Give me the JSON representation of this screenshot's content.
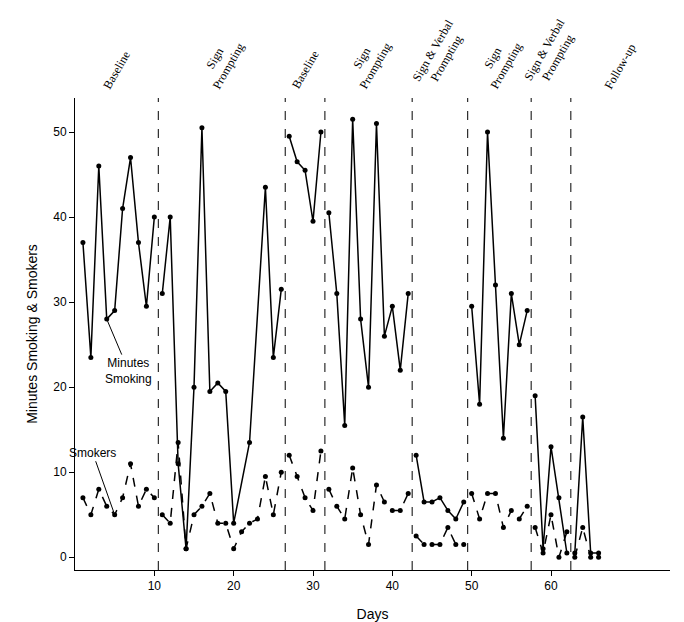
{
  "chart_data": {
    "type": "line",
    "xlabel": "Days",
    "ylabel": "Minutes Smoking & Smokers",
    "xlim": [
      0,
      75
    ],
    "xticks": [
      10,
      20,
      30,
      40,
      50,
      60
    ],
    "ylim": [
      -1.5,
      54
    ],
    "yticks": [
      0,
      10,
      20,
      30,
      40,
      50
    ],
    "grid": false,
    "phase_lines": [
      10.5,
      26.5,
      31.5,
      42.5,
      49.5,
      57.5,
      62.5
    ],
    "phases": [
      {
        "label": [
          "Baseline"
        ]
      },
      {
        "label": [
          "Sign",
          "Prompting"
        ]
      },
      {
        "label": [
          "Baseline"
        ]
      },
      {
        "label": [
          "Sign",
          "Prompting"
        ]
      },
      {
        "label": [
          "Sign & Verbal",
          "Prompting"
        ]
      },
      {
        "label": [
          "Sign",
          "Prompting"
        ]
      },
      {
        "label": [
          "Sign & Verbal",
          "Prompting"
        ]
      },
      {
        "label": [
          "Follow-up"
        ]
      }
    ],
    "series": [
      {
        "name": "Minutes Smoking",
        "color": "#000000",
        "line_style": "solid",
        "marker": "circle",
        "x": [
          1,
          2,
          3,
          4,
          5,
          6,
          7,
          8,
          9,
          10,
          10.5,
          11,
          12,
          13,
          14,
          15,
          16,
          17,
          18,
          19,
          20,
          22,
          24,
          25,
          26,
          26.5,
          27,
          28,
          29,
          30,
          31,
          31.5,
          32,
          33,
          34,
          35,
          36,
          37,
          38,
          39,
          40,
          41,
          42,
          42.5,
          43,
          44,
          45,
          46,
          47,
          48,
          49,
          49.5,
          50,
          51,
          52,
          53,
          54,
          55,
          56,
          57,
          57.5,
          58,
          59,
          60,
          61,
          62,
          62.5,
          63,
          64,
          65,
          66
        ],
        "values": [
          37,
          23.5,
          46,
          28,
          29,
          41,
          47,
          37,
          29.5,
          40,
          null,
          31,
          40,
          11,
          1,
          20,
          50.5,
          19.5,
          20.5,
          19.5,
          4,
          13.5,
          43.5,
          23.5,
          31.5,
          null,
          49.5,
          46.5,
          45.5,
          39.5,
          50,
          null,
          40.5,
          31,
          15.5,
          51.5,
          28,
          20,
          51,
          26,
          29.5,
          22,
          31,
          null,
          12,
          6.5,
          6.5,
          7,
          5.5,
          4.5,
          6.5,
          null,
          29.5,
          18,
          50,
          32,
          14,
          31,
          25,
          29,
          null,
          19,
          1,
          13,
          7,
          0.5,
          null,
          0.5,
          16.5,
          0.5,
          0.5
        ]
      },
      {
        "name": "Smokers",
        "color": "#000000",
        "line_style": "dash",
        "marker": "circle",
        "x": [
          1,
          2,
          3,
          4,
          5,
          6,
          7,
          8,
          9,
          10,
          10.5,
          11,
          12,
          13,
          14,
          15,
          16,
          17,
          18,
          19,
          20,
          21,
          22,
          23,
          24,
          25,
          26,
          26.5,
          27,
          28,
          29,
          30,
          31,
          31.5,
          32,
          33,
          34,
          35,
          36,
          37,
          38,
          39,
          40,
          41,
          42,
          42.5,
          43,
          44,
          45,
          46,
          47,
          48,
          49,
          49.5,
          50,
          51,
          52,
          53,
          54,
          55,
          56,
          57,
          57.5,
          58,
          59,
          60,
          61,
          62,
          62.5,
          63,
          64,
          65,
          66
        ],
        "values": [
          7,
          5,
          8,
          6,
          5,
          7,
          11,
          6,
          8,
          7,
          null,
          5,
          4,
          13.5,
          1,
          5,
          6,
          7.5,
          4,
          4,
          1,
          3,
          4,
          4.5,
          9.5,
          5,
          10,
          null,
          12,
          9.5,
          7,
          5.5,
          12.5,
          null,
          8,
          6,
          4.5,
          10.5,
          5,
          1.5,
          8.5,
          6.5,
          5.5,
          5.5,
          7.5,
          null,
          2.5,
          1.5,
          1.5,
          1.5,
          3.5,
          1.5,
          1.5,
          null,
          7.5,
          4.5,
          7.5,
          7.5,
          3.5,
          5.5,
          4.5,
          6,
          null,
          3.5,
          0.5,
          5,
          0,
          3,
          null,
          0,
          3.5,
          0,
          0
        ]
      }
    ],
    "annotations": [
      {
        "text": [
          "Minutes",
          "Smoking"
        ],
        "x": 4,
        "y": 28
      },
      {
        "text": [
          "Smokers"
        ],
        "x": 5,
        "y": 5
      }
    ]
  }
}
